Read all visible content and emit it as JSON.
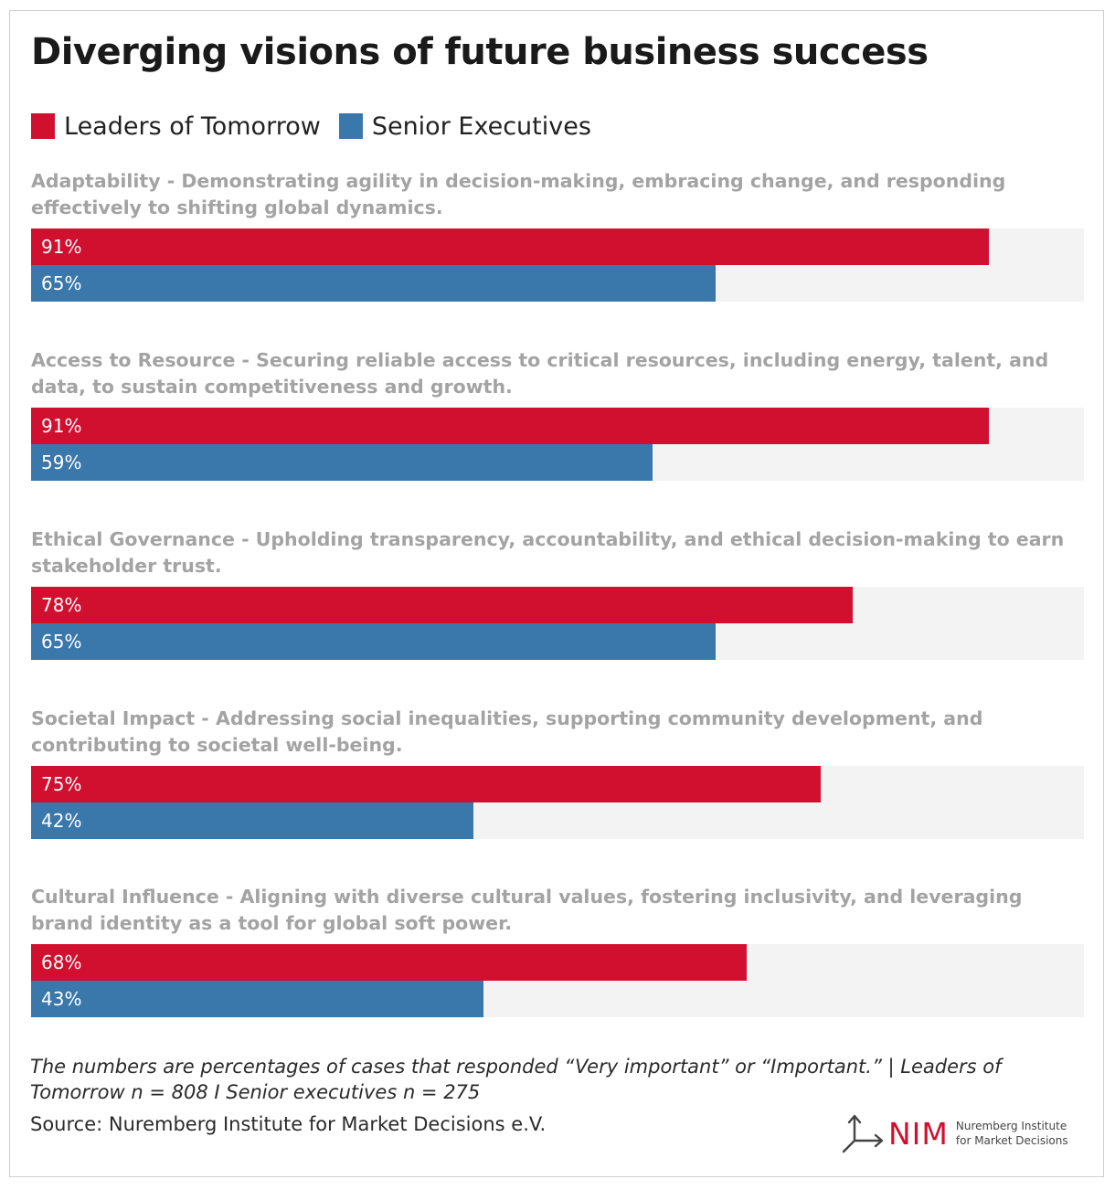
{
  "chart_data": {
    "type": "bar",
    "orientation": "horizontal",
    "title": "Diverging visions of future business success",
    "categories": [
      "Adaptability - Demonstrating agility in decision-making, embracing change, and responding effectively to shifting global dynamics.",
      "Access to Resource - Securing reliable access to critical resources, including energy, talent, and data, to sustain competitiveness and growth.",
      "Ethical Governance - Upholding transparency, accountability, and ethical decision-making to earn stakeholder trust.",
      "Societal Impact - Addressing social inequalities, supporting community development, and contributing to societal well-being.",
      "Cultural Influence - Aligning with diverse cultural values, fostering inclusivity, and leveraging brand identity as a tool for global soft power."
    ],
    "series": [
      {
        "name": "Leaders of Tomorrow",
        "color": "#d10f2f",
        "values": [
          91,
          91,
          78,
          75,
          68
        ],
        "labels": [
          "91%",
          "91%",
          "78%",
          "75%",
          "68%"
        ]
      },
      {
        "name": "Senior Executives",
        "color": "#3a77aa",
        "values": [
          65,
          59,
          65,
          42,
          43
        ],
        "labels": [
          "65%",
          "59%",
          "65%",
          "42%",
          "43%"
        ]
      }
    ],
    "xlim": [
      0,
      100
    ],
    "unit": "%",
    "legend": "top-left",
    "grid": false
  },
  "footer": {
    "note": "The numbers are percentages of cases that responded “Very important” or “Important.” | Leaders of Tomorrow n = 808 I Senior executives n = 275",
    "source": "Source: Nuremberg Institute for Market Decisions e.V."
  },
  "logo": {
    "mark": "NIM",
    "line1": "Nuremberg Institute",
    "line2": "for Market Decisions"
  }
}
